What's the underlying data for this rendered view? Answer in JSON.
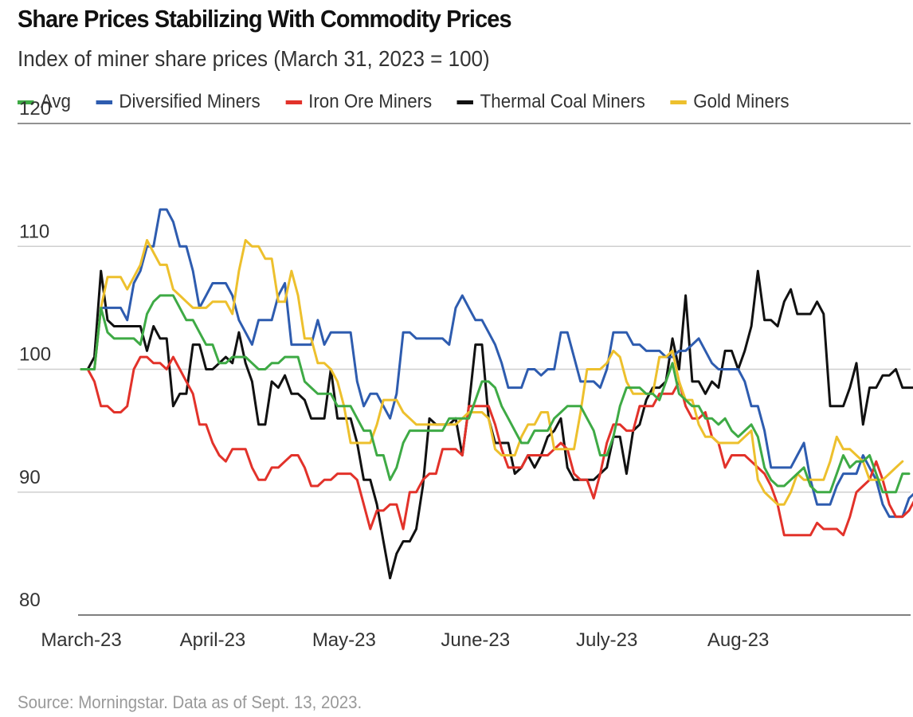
{
  "chart_data": {
    "type": "line",
    "title": "Share Prices Stabilizing With Commodity Prices",
    "subtitle": "Index of miner share prices (March 31, 2023 = 100)",
    "source": "Source: Morningstar. Data as of Sept. 13, 2023.",
    "xlabel": "",
    "ylabel": "",
    "ylim": [
      80,
      120
    ],
    "yticks": [
      120,
      110,
      100,
      90,
      80
    ],
    "ytick_labels": [
      "120",
      "110",
      "100",
      "90",
      "80"
    ],
    "x_tick_labels": [
      "March-23",
      "April-23",
      "May-23",
      "June-23",
      "July-23",
      "Aug-23"
    ],
    "x_tick_positions": [
      0,
      20,
      40,
      60,
      80,
      100
    ],
    "grid": true,
    "legend_position": "top",
    "series": [
      {
        "name": "Avg",
        "color": "#3eaa45",
        "values": [
          100,
          100,
          100,
          105,
          103,
          102.5,
          102.5,
          102.5,
          102.5,
          102,
          104.5,
          105.5,
          106,
          106,
          106,
          105,
          104,
          104,
          103,
          102,
          102,
          100.5,
          100.5,
          101,
          101,
          101,
          100.5,
          100,
          100,
          100.5,
          100.5,
          101,
          101,
          101,
          99,
          98.5,
          98,
          98,
          98,
          97,
          97,
          97,
          96,
          95,
          95,
          93,
          93,
          91,
          92,
          94,
          95,
          95,
          95,
          95,
          95,
          95,
          96,
          96,
          96,
          96,
          97.5,
          99,
          99,
          98.5,
          97,
          96,
          95,
          94,
          94,
          95,
          95,
          95,
          96,
          96.5,
          97,
          97,
          97,
          96,
          95,
          93,
          93,
          94.5,
          97,
          98.5,
          98.5,
          98.5,
          98,
          98,
          97.5,
          99,
          100.5,
          98,
          97.5,
          97,
          97,
          96,
          96,
          95.5,
          96,
          95,
          94.5,
          95,
          95.5,
          94.5,
          92,
          91,
          90.5,
          90.5,
          91,
          91.5,
          92,
          90.5,
          90,
          90,
          90,
          91.5,
          93,
          92,
          92.5,
          92.5,
          93,
          91.5,
          90,
          90,
          90,
          91.5,
          91.5
        ]
      },
      {
        "name": "Diversified Miners",
        "color": "#2e5caf",
        "values": [
          100,
          100,
          100,
          105,
          105,
          105,
          105,
          104,
          107,
          108,
          110,
          110,
          113,
          113,
          112,
          110,
          110,
          108,
          105,
          106,
          107,
          107,
          107,
          106,
          104,
          103,
          102,
          104,
          104,
          104,
          106,
          107,
          102,
          102,
          102,
          102,
          104,
          102,
          103,
          103,
          103,
          103,
          99,
          97,
          98,
          98,
          97,
          96,
          98,
          103,
          103,
          102.5,
          102.5,
          102.5,
          102.5,
          102.5,
          102,
          105,
          106,
          105,
          104,
          104,
          103,
          102,
          100.5,
          98.5,
          98.5,
          98.5,
          100,
          100,
          99.5,
          100,
          100,
          103,
          103,
          101,
          99,
          99,
          99,
          98.5,
          100,
          103,
          103,
          103,
          102,
          102,
          101.5,
          101.5,
          101.5,
          101,
          101,
          101.5,
          101.5,
          102,
          102.5,
          101.5,
          100.5,
          100,
          100,
          100,
          100,
          99,
          97,
          97,
          95,
          92,
          92,
          92,
          92,
          93,
          94,
          91,
          89,
          89,
          89,
          90.5,
          91.5,
          91.5,
          91.5,
          93,
          92,
          91,
          89,
          88,
          88,
          88,
          89.5,
          90
        ]
      },
      {
        "name": "Iron Ore Miners",
        "color": "#e2322a",
        "values": [
          100,
          100,
          99,
          97,
          97,
          96.5,
          96.5,
          97,
          100,
          101,
          101,
          100.5,
          100.5,
          100,
          101,
          100,
          99,
          98,
          95.5,
          95.5,
          94,
          93,
          92.5,
          93.5,
          93.5,
          93.5,
          92,
          91,
          91,
          92,
          92,
          92.5,
          93,
          93,
          92,
          90.5,
          90.5,
          91,
          91,
          91.5,
          91.5,
          91.5,
          91,
          89,
          87,
          88.5,
          88.5,
          89,
          89,
          87,
          90,
          90,
          91,
          91.5,
          91.5,
          93.5,
          93.5,
          93.5,
          93,
          97,
          97,
          97,
          97,
          95.5,
          93.5,
          92,
          92,
          92,
          93,
          93,
          93,
          93,
          93.5,
          94,
          93.5,
          91.5,
          91,
          91,
          89.5,
          91.5,
          94,
          95.5,
          95.5,
          95,
          95,
          97,
          97,
          97,
          98,
          98,
          98,
          99,
          97,
          96,
          96,
          96.5,
          94.5,
          94,
          92,
          93,
          93,
          93,
          92.5,
          92,
          91.5,
          90.5,
          89,
          86.5,
          86.5,
          86.5,
          86.5,
          86.5,
          87.5,
          87,
          87,
          87,
          86.5,
          88,
          90,
          90.5,
          91,
          92.5,
          91,
          89,
          88,
          88,
          88.5,
          89.5
        ]
      },
      {
        "name": "Thermal Coal Miners",
        "color": "#111111",
        "values": [
          100,
          100,
          101,
          108,
          104,
          103.5,
          103.5,
          103.5,
          103.5,
          103.5,
          101.5,
          103.5,
          102.5,
          102.5,
          97,
          98,
          98,
          102,
          102,
          100,
          100,
          100.5,
          101,
          100.5,
          103,
          100.5,
          99,
          95.5,
          95.5,
          99,
          98.5,
          99.5,
          98,
          98,
          97.5,
          96,
          96,
          96,
          100,
          96,
          96,
          96,
          94,
          91,
          91,
          89,
          86,
          83,
          85,
          86,
          86,
          87,
          90.5,
          96,
          95.5,
          95.5,
          95.5,
          96,
          93,
          97,
          102,
          102,
          96,
          94,
          94,
          94,
          91.5,
          92,
          93,
          92,
          93,
          94.5,
          95,
          96,
          92,
          91,
          91,
          91,
          91,
          91.5,
          92,
          94.5,
          94.5,
          91.5,
          95,
          95.5,
          97.5,
          98.5,
          98.5,
          99,
          102.5,
          100,
          106,
          99,
          99,
          98,
          99,
          98.5,
          101.5,
          101.5,
          100,
          101.5,
          103.5,
          108,
          104,
          104,
          103.5,
          105.5,
          106.5,
          104.5,
          104.5,
          104.5,
          105.5,
          104.5,
          97,
          97,
          97,
          98.5,
          100.5,
          95.5,
          98.5,
          98.5,
          99.5,
          99.5,
          100,
          98.5,
          98.5,
          98.5,
          98,
          98.5,
          98.5
        ]
      },
      {
        "name": "Gold Miners",
        "color": "#edc02d",
        "values": [
          100,
          100,
          100,
          105,
          107.5,
          107.5,
          107.5,
          106.5,
          107.5,
          108.5,
          110.5,
          109.5,
          108.5,
          108.5,
          106.5,
          106,
          105.5,
          105,
          105,
          105,
          105.5,
          105.5,
          105.5,
          104.5,
          108,
          110.5,
          110,
          110,
          109,
          109,
          105.5,
          105.5,
          108,
          106,
          102.5,
          102.5,
          100.5,
          100.5,
          100,
          99,
          97,
          94,
          94,
          94,
          94,
          95.5,
          97.5,
          97.5,
          97.5,
          96.5,
          96,
          95.5,
          95.5,
          95.5,
          95.5,
          95.5,
          95.5,
          95.5,
          96,
          96.5,
          96.5,
          96.5,
          96,
          93.5,
          93,
          93,
          93,
          94.5,
          95.5,
          95.5,
          96.5,
          96.5,
          93.5,
          93.5,
          93.5,
          93.5,
          96.5,
          100,
          100,
          100,
          100.5,
          101.5,
          101,
          99,
          98,
          98,
          98,
          98,
          101,
          101,
          101.5,
          99,
          97.5,
          97.5,
          95.5,
          94.5,
          94.5,
          94,
          94,
          94,
          94,
          94.5,
          95,
          91,
          90,
          89.5,
          89,
          89,
          90,
          91.5,
          91,
          91,
          91,
          91,
          92.5,
          94.5,
          93.5,
          93.5,
          93,
          92.5,
          91,
          91,
          91,
          91.5,
          92,
          92.5
        ]
      }
    ]
  }
}
